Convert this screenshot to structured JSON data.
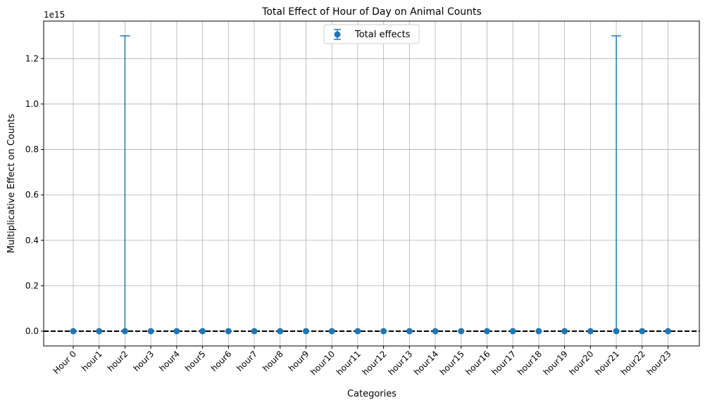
{
  "chart_data": {
    "type": "scatter",
    "title": "Total Effect of Hour of Day on Animal Counts",
    "xlabel": "Categories",
    "ylabel": "Multiplicative Effect on Counts",
    "y_offset_label": "1e15",
    "y_scale": 1000000000000000.0,
    "categories": [
      "Hour 0",
      "hour1",
      "hour2",
      "hour3",
      "hour4",
      "hour5",
      "hour6",
      "hour7",
      "hour8",
      "hour9",
      "hour10",
      "hour11",
      "hour12",
      "hour13",
      "hour14",
      "hour15",
      "hour16",
      "hour17",
      "hour18",
      "hour19",
      "hour20",
      "hour21",
      "hour22",
      "hour23"
    ],
    "series": [
      {
        "name": "Total effects",
        "color": "#1f77b4",
        "values": [
          0,
          0,
          0,
          0,
          0,
          0,
          0,
          0,
          0,
          0,
          0,
          0,
          0,
          0,
          0,
          0,
          0,
          0,
          0,
          0,
          0,
          0,
          0,
          0
        ],
        "error_upper": [
          0,
          0,
          1300000000000000.0,
          0,
          0,
          0,
          0,
          0,
          0,
          0,
          0,
          0,
          0,
          0,
          0,
          0,
          0,
          0,
          0,
          0,
          0,
          1300000000000000.0,
          0,
          0
        ],
        "error_lower": [
          0,
          0,
          0,
          0,
          0,
          0,
          0,
          0,
          0,
          0,
          0,
          0,
          0,
          0,
          0,
          0,
          0,
          0,
          0,
          0,
          0,
          0,
          0,
          0
        ]
      }
    ],
    "reference_line": {
      "y": 0,
      "style": "dashed",
      "color": "#000000"
    },
    "yticks": [
      "0.0",
      "0.2",
      "0.4",
      "0.6",
      "0.8",
      "1.0",
      "1.2"
    ],
    "ylim": [
      -0.065,
      1.365
    ],
    "grid": true,
    "legend_position": "top-center"
  }
}
